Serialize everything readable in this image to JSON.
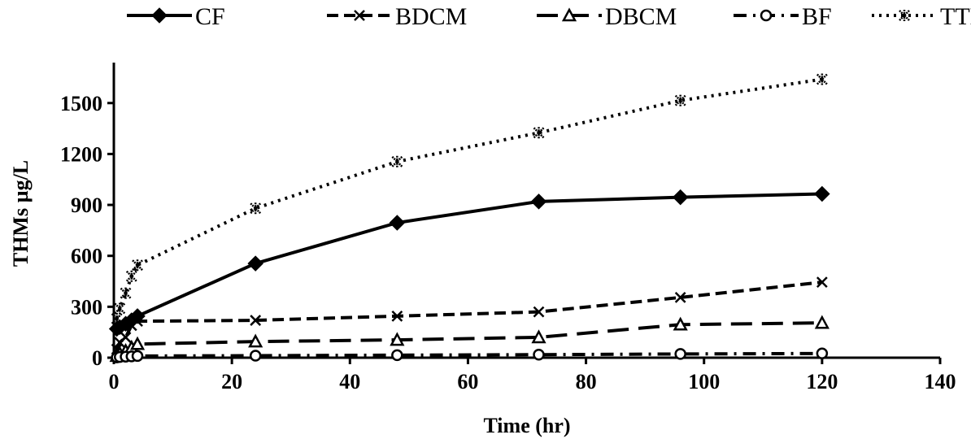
{
  "chart_data": {
    "type": "line",
    "xlabel": "Time (hr)",
    "ylabel": "THMs µg/L",
    "xlim": [
      0,
      140
    ],
    "ylim": [
      0,
      1700
    ],
    "xticks": [
      0,
      20,
      40,
      60,
      80,
      100,
      120,
      140
    ],
    "yticks": [
      0,
      300,
      600,
      900,
      1200,
      1500
    ],
    "grid": false,
    "legend": "top",
    "series": [
      {
        "name": "CF",
        "marker": "diamond",
        "dash": "solid",
        "color": "#000000",
        "x": [
          0.5,
          1,
          2,
          3,
          4,
          24,
          48,
          72,
          96,
          120
        ],
        "y": [
          170,
          180,
          200,
          220,
          245,
          555,
          795,
          920,
          945,
          965
        ]
      },
      {
        "name": "BDCM",
        "marker": "x",
        "dash": "dashed",
        "color": "#000000",
        "x": [
          0.5,
          1,
          2,
          3,
          4,
          24,
          48,
          72,
          96,
          120
        ],
        "y": [
          50,
          90,
          120,
          190,
          215,
          220,
          245,
          270,
          355,
          445
        ]
      },
      {
        "name": "DBCM",
        "marker": "triangle",
        "dash": "longdash",
        "color": "#000000",
        "x": [
          0.5,
          1,
          2,
          3,
          4,
          24,
          48,
          72,
          96,
          120
        ],
        "y": [
          10,
          25,
          40,
          60,
          80,
          95,
          105,
          120,
          195,
          205
        ]
      },
      {
        "name": "BF",
        "marker": "circle",
        "dash": "dashdot",
        "color": "#000000",
        "x": [
          0.5,
          1,
          2,
          3,
          4,
          24,
          48,
          72,
          96,
          120
        ],
        "y": [
          2,
          4,
          6,
          8,
          10,
          12,
          15,
          18,
          22,
          25
        ]
      },
      {
        "name": "TTHM",
        "marker": "star",
        "dash": "dotted",
        "color": "#000000",
        "x": [
          0.5,
          1,
          2,
          3,
          4,
          24,
          48,
          72,
          96,
          120
        ],
        "y": [
          230,
          290,
          380,
          480,
          545,
          880,
          1155,
          1325,
          1515,
          1640
        ]
      }
    ]
  }
}
